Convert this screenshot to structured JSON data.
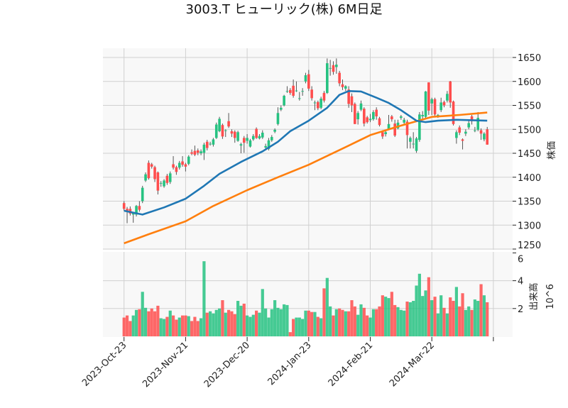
{
  "chart_data": {
    "type": "candlestick",
    "title": "3003.T ヒューリック(株) 6M日足",
    "ylabel": "株価",
    "volume_ylabel": "出来高",
    "volume_scale": "10^6",
    "ylim": [
      1240,
      1667
    ],
    "volume_ylim": [
      0,
      6
    ],
    "price_ticks": [
      1250,
      1300,
      1350,
      1400,
      1450,
      1500,
      1550,
      1600,
      1650
    ],
    "volume_ticks": [
      2,
      4,
      6
    ],
    "x_ticks": [
      {
        "index": 0,
        "label": "2023-Oct-23"
      },
      {
        "index": 20,
        "label": "2023-Nov-21"
      },
      {
        "index": 40,
        "label": "2023-Dec-20"
      },
      {
        "index": 60,
        "label": "2024-Jan-23"
      },
      {
        "index": 80,
        "label": "2024-Feb-21"
      },
      {
        "index": 100,
        "label": "2024-Mar-22"
      },
      {
        "index": 120,
        "label": ""
      }
    ],
    "colors": {
      "up": "#26c281",
      "down": "#ff4d4d",
      "ma_short": "#1f77b4",
      "ma_long": "#ff7f0e",
      "grid": "#d0d0d0",
      "panel": "#f8f8f8"
    },
    "ohlc": [
      [
        1346,
        1350,
        1330,
        1334
      ],
      [
        1334,
        1338,
        1304,
        1329
      ],
      [
        1334,
        1339,
        1320,
        1324
      ],
      [
        1322,
        1327,
        1305,
        1325
      ],
      [
        1322,
        1342,
        1318,
        1340
      ],
      [
        1340,
        1350,
        1328,
        1332
      ],
      [
        1350,
        1382,
        1346,
        1378
      ],
      [
        1393,
        1410,
        1390,
        1406
      ],
      [
        1430,
        1435,
        1395,
        1398
      ],
      [
        1427,
        1430,
        1418,
        1422
      ],
      [
        1421,
        1424,
        1390,
        1396
      ],
      [
        1410,
        1412,
        1364,
        1372
      ],
      [
        1388,
        1392,
        1380,
        1388
      ],
      [
        1381,
        1396,
        1378,
        1393
      ],
      [
        1403,
        1407,
        1384,
        1388
      ],
      [
        1390,
        1412,
        1386,
        1408
      ],
      [
        1427,
        1444,
        1416,
        1420
      ],
      [
        1421,
        1424,
        1405,
        1411
      ],
      [
        1420,
        1434,
        1416,
        1430
      ],
      [
        1433,
        1444,
        1422,
        1426
      ],
      [
        1427,
        1430,
        1412,
        1422
      ],
      [
        1428,
        1446,
        1425,
        1443
      ],
      [
        1452,
        1458,
        1446,
        1449
      ],
      [
        1455,
        1466,
        1444,
        1447
      ],
      [
        1456,
        1460,
        1446,
        1451
      ],
      [
        1450,
        1458,
        1446,
        1454
      ],
      [
        1451,
        1472,
        1436,
        1468
      ],
      [
        1474,
        1478,
        1456,
        1461
      ],
      [
        1470,
        1474,
        1466,
        1470
      ],
      [
        1468,
        1482,
        1464,
        1479
      ],
      [
        1482,
        1514,
        1480,
        1510
      ],
      [
        1496,
        1526,
        1494,
        1522
      ],
      [
        1509,
        1512,
        1480,
        1485
      ],
      [
        1498,
        1500,
        1484,
        1498
      ],
      [
        1517,
        1534,
        1503,
        1506
      ],
      [
        1496,
        1500,
        1484,
        1491
      ],
      [
        1495,
        1498,
        1472,
        1482
      ],
      [
        1476,
        1497,
        1474,
        1494
      ],
      [
        1466,
        1472,
        1450,
        1469
      ],
      [
        1482,
        1486,
        1451,
        1472
      ],
      [
        1476,
        1490,
        1470,
        1482
      ],
      [
        1464,
        1480,
        1462,
        1477
      ],
      [
        1479,
        1490,
        1476,
        1486
      ],
      [
        1501,
        1504,
        1480,
        1482
      ],
      [
        1481,
        1490,
        1479,
        1486
      ],
      [
        1483,
        1498,
        1480,
        1493
      ],
      [
        1462,
        1470,
        1458,
        1465
      ],
      [
        1459,
        1482,
        1456,
        1477
      ],
      [
        1477,
        1488,
        1474,
        1484
      ],
      [
        1495,
        1502,
        1492,
        1499
      ],
      [
        1511,
        1546,
        1508,
        1534
      ],
      [
        1541,
        1550,
        1538,
        1545
      ],
      [
        1550,
        1572,
        1548,
        1570
      ],
      [
        1580,
        1590,
        1576,
        1580
      ],
      [
        1582,
        1586,
        1572,
        1576
      ],
      [
        1591,
        1604,
        1566,
        1570
      ],
      [
        1581,
        1600,
        1578,
        1581
      ],
      [
        1565,
        1578,
        1560,
        1565
      ],
      [
        1580,
        1586,
        1570,
        1580
      ],
      [
        1600,
        1618,
        1596,
        1613
      ],
      [
        1615,
        1624,
        1580,
        1585
      ],
      [
        1583,
        1590,
        1560,
        1565
      ],
      [
        1556,
        1560,
        1540,
        1556
      ],
      [
        1557,
        1560,
        1540,
        1544
      ],
      [
        1545,
        1568,
        1542,
        1564
      ],
      [
        1576,
        1580,
        1556,
        1560
      ],
      [
        1576,
        1648,
        1574,
        1638
      ],
      [
        1628,
        1645,
        1612,
        1628
      ],
      [
        1634,
        1642,
        1614,
        1620
      ],
      [
        1630,
        1648,
        1616,
        1635
      ],
      [
        1618,
        1622,
        1590,
        1596
      ],
      [
        1594,
        1604,
        1582,
        1588
      ],
      [
        1585,
        1592,
        1580,
        1590
      ],
      [
        1583,
        1590,
        1545,
        1553
      ],
      [
        1569,
        1575,
        1536,
        1550
      ],
      [
        1553,
        1556,
        1511,
        1511
      ],
      [
        1521,
        1538,
        1510,
        1534
      ],
      [
        1541,
        1560,
        1538,
        1554
      ],
      [
        1543,
        1546,
        1506,
        1512
      ],
      [
        1525,
        1528,
        1512,
        1515
      ],
      [
        1519,
        1532,
        1515,
        1522
      ],
      [
        1521,
        1540,
        1518,
        1536
      ],
      [
        1541,
        1546,
        1520,
        1527
      ],
      [
        1523,
        1526,
        1506,
        1509
      ],
      [
        1494,
        1498,
        1480,
        1485
      ],
      [
        1490,
        1498,
        1485,
        1494
      ],
      [
        1501,
        1530,
        1499,
        1511
      ],
      [
        1527,
        1530,
        1516,
        1521
      ],
      [
        1512,
        1520,
        1484,
        1487
      ],
      [
        1502,
        1520,
        1500,
        1514
      ],
      [
        1524,
        1530,
        1520,
        1527
      ],
      [
        1514,
        1524,
        1510,
        1520
      ],
      [
        1516,
        1520,
        1460,
        1488
      ],
      [
        1474,
        1485,
        1460,
        1482
      ],
      [
        1470,
        1494,
        1460,
        1470
      ],
      [
        1455,
        1484,
        1451,
        1481
      ],
      [
        1478,
        1536,
        1474,
        1531
      ],
      [
        1527,
        1538,
        1520,
        1530
      ],
      [
        1526,
        1580,
        1522,
        1579
      ],
      [
        1598,
        1598,
        1530,
        1539
      ],
      [
        1554,
        1566,
        1530,
        1563
      ],
      [
        1563,
        1566,
        1528,
        1531
      ],
      [
        1527,
        1532,
        1524,
        1530
      ],
      [
        1540,
        1566,
        1536,
        1556
      ],
      [
        1557,
        1560,
        1546,
        1550
      ],
      [
        1560,
        1580,
        1556,
        1574
      ],
      [
        1600,
        1601,
        1545,
        1556
      ],
      [
        1558,
        1560,
        1508,
        1511
      ],
      [
        1482,
        1498,
        1470,
        1494
      ],
      [
        1504,
        1508,
        1488,
        1493
      ],
      [
        1479,
        1481,
        1458,
        1476
      ],
      [
        1491,
        1500,
        1486,
        1495
      ],
      [
        1504,
        1518,
        1500,
        1513
      ],
      [
        1527,
        1530,
        1510,
        1517
      ],
      [
        1498,
        1505,
        1494,
        1498
      ],
      [
        1499,
        1536,
        1496,
        1524
      ],
      [
        1498,
        1502,
        1478,
        1491
      ],
      [
        1479,
        1494,
        1475,
        1491
      ],
      [
        1500,
        1505,
        1468,
        1468
      ]
    ],
    "volume_millions": [
      1.35,
      1.5,
      1.1,
      1.5,
      1.9,
      1.95,
      3.2,
      2.05,
      1.8,
      2.0,
      1.8,
      2.2,
      1.3,
      1.25,
      1.4,
      1.85,
      1.5,
      1.2,
      1.35,
      1.5,
      1.5,
      1.45,
      1.1,
      1.4,
      1.1,
      1.3,
      5.4,
      1.7,
      1.8,
      1.65,
      1.9,
      2.0,
      2.6,
      1.7,
      1.9,
      1.8,
      1.6,
      2.55,
      2.2,
      2.35,
      1.5,
      1.4,
      1.55,
      1.85,
      1.7,
      3.4,
      2.0,
      1.35,
      1.95,
      2.6,
      2.05,
      1.95,
      2.3,
      2.25,
      0.3,
      1.25,
      1.35,
      1.35,
      1.25,
      1.85,
      1.85,
      1.75,
      1.75,
      1.4,
      1.3,
      3.45,
      4.2,
      2.15,
      1.5,
      1.95,
      2.0,
      1.9,
      1.8,
      1.8,
      2.6,
      2.15,
      1.55,
      2.3,
      2.05,
      1.5,
      1.35,
      1.95,
      1.95,
      2.15,
      2.95,
      2.85,
      2.75,
      3.2,
      2.25,
      2.1,
      1.9,
      1.85,
      2.5,
      2.45,
      2.55,
      3.65,
      4.5,
      2.9,
      3.3,
      4.25,
      2.6,
      2.85,
      1.65,
      2.95,
      2.05,
      1.65,
      2.8,
      2.55,
      3.55,
      2.15,
      3.1,
      1.9,
      2.15,
      1.9,
      2.65,
      2.55,
      3.75,
      2.95,
      2.45
    ],
    "ma_short": [
      [
        0,
        1330
      ],
      [
        6,
        1322
      ],
      [
        13,
        1337
      ],
      [
        20,
        1355
      ],
      [
        26,
        1382
      ],
      [
        31,
        1407
      ],
      [
        38,
        1432
      ],
      [
        45,
        1454
      ],
      [
        50,
        1474
      ],
      [
        54,
        1496
      ],
      [
        60,
        1518
      ],
      [
        66,
        1545
      ],
      [
        70,
        1572
      ],
      [
        73,
        1580
      ],
      [
        77,
        1579
      ],
      [
        82,
        1566
      ],
      [
        86,
        1555
      ],
      [
        90,
        1540
      ],
      [
        95,
        1518
      ],
      [
        98,
        1515
      ],
      [
        102,
        1518
      ],
      [
        108,
        1520
      ],
      [
        113,
        1519
      ],
      [
        118,
        1518
      ]
    ],
    "ma_long": [
      [
        0,
        1262
      ],
      [
        8,
        1281
      ],
      [
        20,
        1308
      ],
      [
        29,
        1340
      ],
      [
        40,
        1373
      ],
      [
        50,
        1400
      ],
      [
        60,
        1426
      ],
      [
        73,
        1466
      ],
      [
        80,
        1488
      ],
      [
        89,
        1506
      ],
      [
        100,
        1526
      ],
      [
        109,
        1530
      ],
      [
        118,
        1535
      ]
    ]
  }
}
